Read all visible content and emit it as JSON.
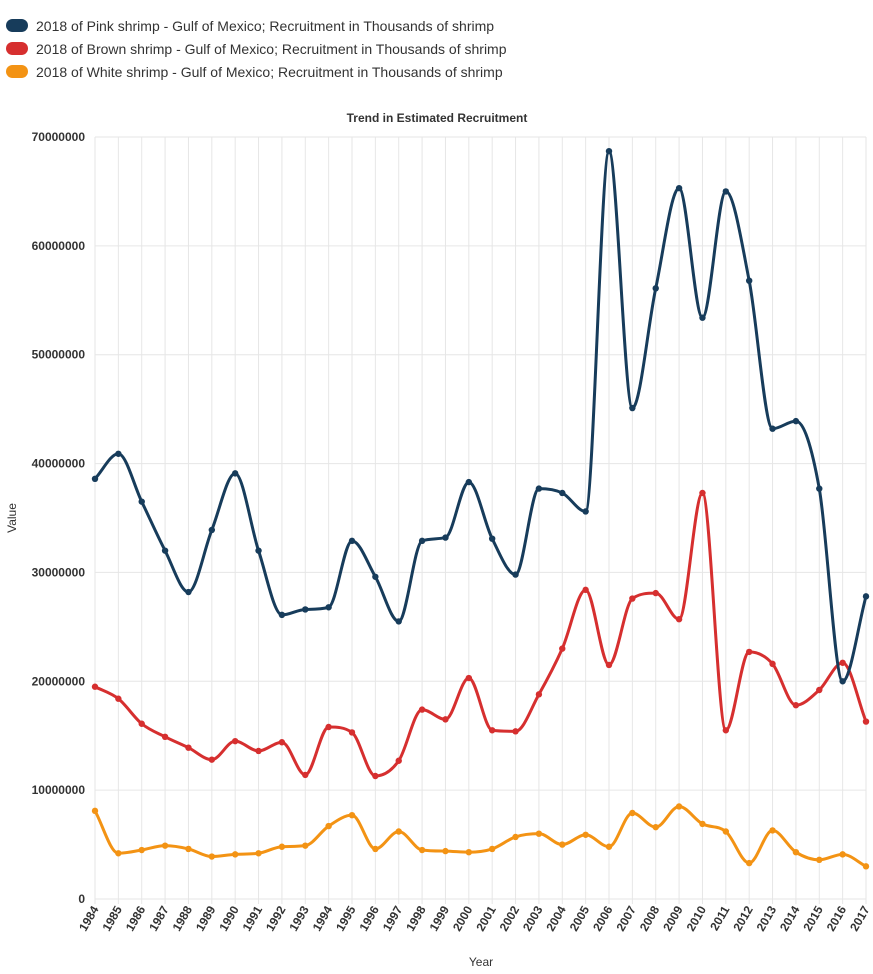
{
  "chart_data": {
    "type": "line",
    "title": "Trend in Estimated Recruitment",
    "xlabel": "Year",
    "ylabel": "Value",
    "ylim": [
      0,
      70000000
    ],
    "yticks": [
      0,
      10000000,
      20000000,
      30000000,
      40000000,
      50000000,
      60000000,
      70000000
    ],
    "grid": true,
    "legend_position": "top-left",
    "categories": [
      "1984",
      "1985",
      "1986",
      "1987",
      "1988",
      "1989",
      "1990",
      "1991",
      "1992",
      "1993",
      "1994",
      "1995",
      "1996",
      "1997",
      "1998",
      "1999",
      "2000",
      "2001",
      "2002",
      "2003",
      "2004",
      "2005",
      "2006",
      "2007",
      "2008",
      "2009",
      "2010",
      "2011",
      "2012",
      "2013",
      "2014",
      "2015",
      "2016",
      "2017"
    ],
    "series": [
      {
        "name": "2018 of Pink shrimp - Gulf of Mexico; Recruitment in Thousands of shrimp",
        "color": "#173c5b",
        "values": [
          38600000,
          40900000,
          36500000,
          32000000,
          28200000,
          33900000,
          39100000,
          32000000,
          26100000,
          26600000,
          26800000,
          32900000,
          29600000,
          25500000,
          32900000,
          33200000,
          38300000,
          33100000,
          29800000,
          37700000,
          37300000,
          35600000,
          68700000,
          45100000,
          56100000,
          65300000,
          53400000,
          65000000,
          56800000,
          43200000,
          43900000,
          37700000,
          20000000,
          27800000
        ]
      },
      {
        "name": "2018 of Brown shrimp - Gulf of Mexico; Recruitment in Thousands of shrimp",
        "color": "#d62f2f",
        "values": [
          19500000,
          18400000,
          16100000,
          14900000,
          13900000,
          12800000,
          14500000,
          13600000,
          14400000,
          11400000,
          15800000,
          15300000,
          11300000,
          12700000,
          17400000,
          16500000,
          20300000,
          15500000,
          15400000,
          18800000,
          23000000,
          28400000,
          21500000,
          27600000,
          28100000,
          25700000,
          37300000,
          15500000,
          22700000,
          21600000,
          17800000,
          19200000,
          21700000,
          16300000
        ]
      },
      {
        "name": "2018 of White shrimp - Gulf of Mexico; Recruitment in Thousands of shrimp",
        "color": "#f39314",
        "values": [
          8100000,
          4200000,
          4500000,
          4900000,
          4600000,
          3900000,
          4100000,
          4200000,
          4800000,
          4900000,
          6700000,
          7700000,
          4600000,
          6200000,
          4500000,
          4400000,
          4300000,
          4600000,
          5700000,
          6000000,
          5000000,
          5900000,
          4800000,
          7900000,
          6600000,
          8500000,
          6900000,
          6200000,
          3300000,
          6300000,
          4300000,
          3600000,
          4100000,
          3000000
        ]
      }
    ]
  }
}
